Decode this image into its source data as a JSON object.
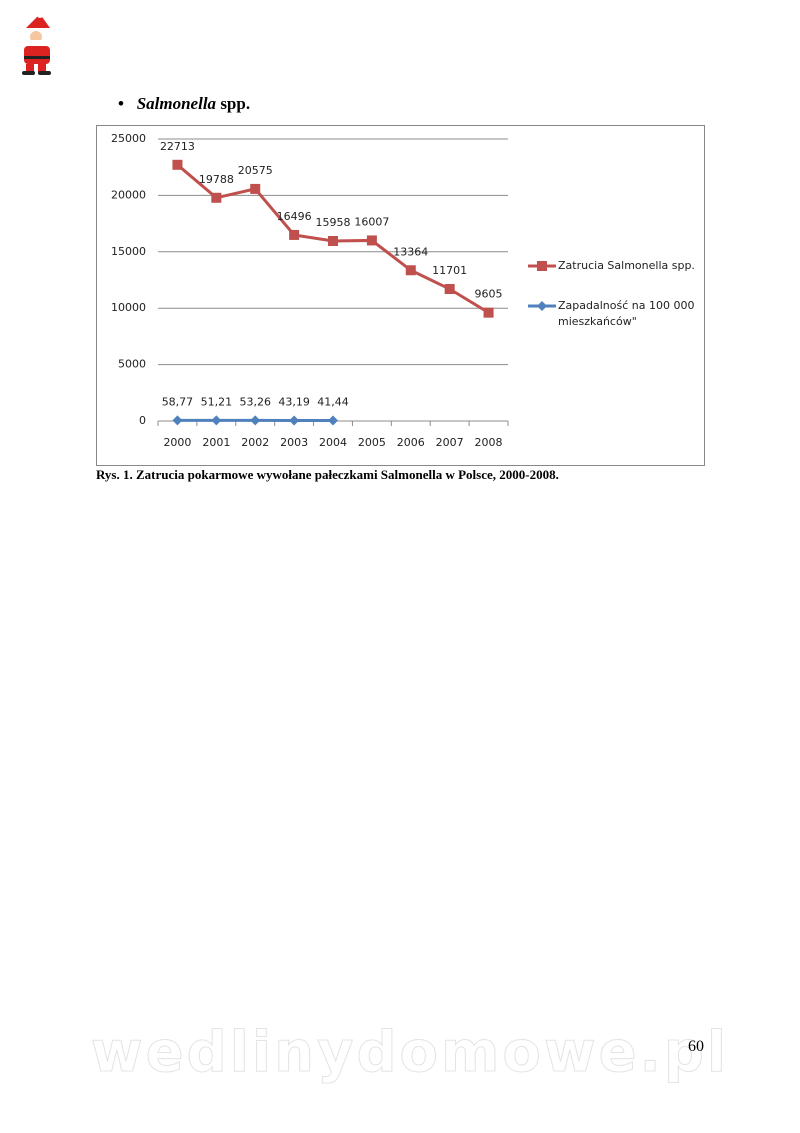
{
  "heading": {
    "italic": "Salmonella",
    "rest": "spp."
  },
  "chart_data": {
    "type": "line",
    "categories": [
      "2000",
      "2001",
      "2002",
      "2003",
      "2004",
      "2005",
      "2006",
      "2007",
      "2008"
    ],
    "series": [
      {
        "name": "Zatrucia Salmonella spp.",
        "color": "#c0504d",
        "marker": "square",
        "values": [
          22713,
          19788,
          20575,
          16496,
          15958,
          16007,
          13364,
          11701,
          9605
        ]
      },
      {
        "name": "Zapadalność na 100 000 mieszkańców\"",
        "color": "#4f81bd",
        "marker": "diamond",
        "values": [
          58.77,
          51.21,
          53.26,
          43.19,
          41.44,
          null,
          null,
          null,
          null
        ],
        "value_labels": [
          "58,77",
          "51,21",
          "53,26",
          "43,19",
          "41,44",
          null,
          null,
          null,
          null
        ]
      }
    ],
    "ylim": [
      0,
      25000
    ],
    "yticks": [
      0,
      5000,
      10000,
      15000,
      20000,
      25000
    ],
    "grid": true,
    "legend": "right"
  },
  "caption": "Rys. 1. Zatrucia pokarmowe wywołane pałeczkami Salmonella w Polsce, 2000-2008.",
  "watermark": "wedlinydomowe.pl",
  "page_number": "60"
}
